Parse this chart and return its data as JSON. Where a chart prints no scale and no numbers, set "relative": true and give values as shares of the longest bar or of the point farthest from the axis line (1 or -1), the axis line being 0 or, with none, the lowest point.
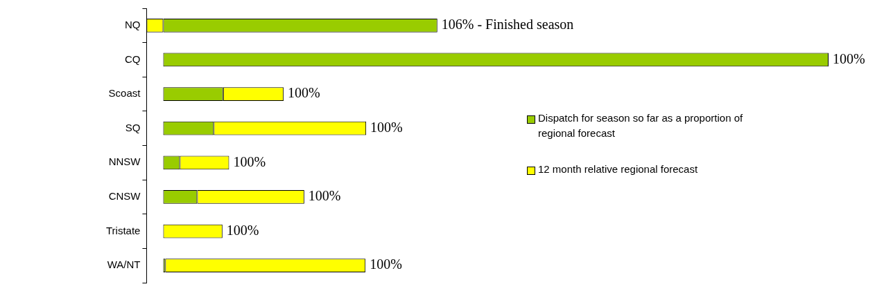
{
  "chart_data": {
    "type": "bar",
    "orientation": "horizontal",
    "stacked": true,
    "relative": true,
    "legend": "right",
    "categories": [
      "NQ",
      "CQ",
      "Scoast",
      "SQ",
      "NNSW",
      "CNSW",
      "Tristate",
      "WA/NT"
    ],
    "series": [
      {
        "name": "Dispatch for season so far as a proportion of regional forecast",
        "color": "#99cc00",
        "values": [
          0.412,
          1.0,
          0.09,
          0.076,
          0.025,
          0.051,
          0,
          0.003
        ]
      },
      {
        "name": "12 month relative regional forecast",
        "color": "#ffff00",
        "values": [
          -0.025,
          0,
          0.091,
          0.229,
          0.074,
          0.161,
          0.089,
          0.301
        ]
      }
    ],
    "annotations": [
      "106% - Finished season",
      "100%",
      "100%",
      "100%",
      "100%",
      "100%",
      "100%",
      "100%"
    ]
  }
}
